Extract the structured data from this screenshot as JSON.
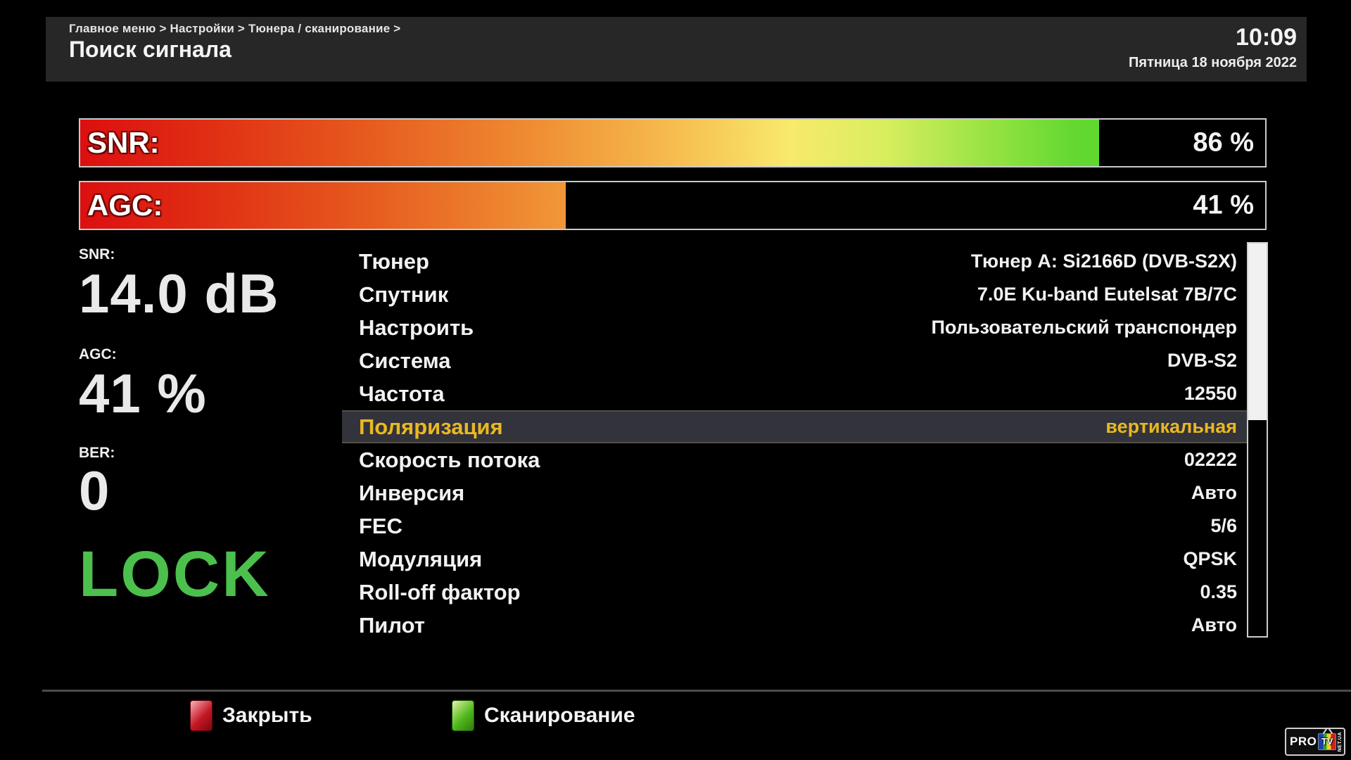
{
  "header": {
    "breadcrumb": "Главное меню > Настройки > Тюнера / сканирование >",
    "title": "Поиск сигнала",
    "time": "10:09",
    "date": "Пятница 18 ноября 2022"
  },
  "bars": [
    {
      "label": "SNR:",
      "value": 86,
      "value_text": "86 %"
    },
    {
      "label": "AGC:",
      "value": 41,
      "value_text": "41 %"
    }
  ],
  "metrics": {
    "snr": {
      "label": "SNR:",
      "value": "14.0 dB"
    },
    "agc": {
      "label": "AGC:",
      "value": "41 %"
    },
    "ber": {
      "label": "BER:",
      "value": "0"
    }
  },
  "lock": {
    "text": "LOCK"
  },
  "settings": {
    "rows": [
      {
        "label": "Тюнер",
        "value": "Тюнер A: Si2166D (DVB-S2X)",
        "selected": false
      },
      {
        "label": "Спутник",
        "value": "7.0E Ku-band Eutelsat 7B/7C",
        "selected": false
      },
      {
        "label": "Настроить",
        "value": "Пользовательский транспондер",
        "selected": false
      },
      {
        "label": "Система",
        "value": "DVB-S2",
        "selected": false
      },
      {
        "label": "Частота",
        "value": "12550",
        "selected": false
      },
      {
        "label": "Поляризация",
        "value": "вертикальная",
        "selected": true
      },
      {
        "label": "Скорость потока",
        "value": "02222",
        "selected": false
      },
      {
        "label": "Инверсия",
        "value": "Авто",
        "selected": false
      },
      {
        "label": "FEC",
        "value": "5/6",
        "selected": false
      },
      {
        "label": "Модуляция",
        "value": "QPSK",
        "selected": false
      },
      {
        "label": "Roll-off фактор",
        "value": "0.35",
        "selected": false
      },
      {
        "label": "Пилот",
        "value": "Авто",
        "selected": false
      }
    ]
  },
  "scrollbar": {
    "thumb_percent": 45
  },
  "footer": {
    "buttons": [
      {
        "key": "red",
        "label": "Закрыть"
      },
      {
        "key": "green",
        "label": "Сканирование"
      }
    ]
  },
  "logo": {
    "pro": "PRO",
    "tv": "TV",
    "net": "NET.UA"
  },
  "colors": {
    "lock_green": "#4cc04c",
    "selected_text": "#e9b822",
    "header_bg": "#272727",
    "bar_border": "#c9c9c9",
    "red_key": "#c41824",
    "green_key": "#52b81e"
  }
}
